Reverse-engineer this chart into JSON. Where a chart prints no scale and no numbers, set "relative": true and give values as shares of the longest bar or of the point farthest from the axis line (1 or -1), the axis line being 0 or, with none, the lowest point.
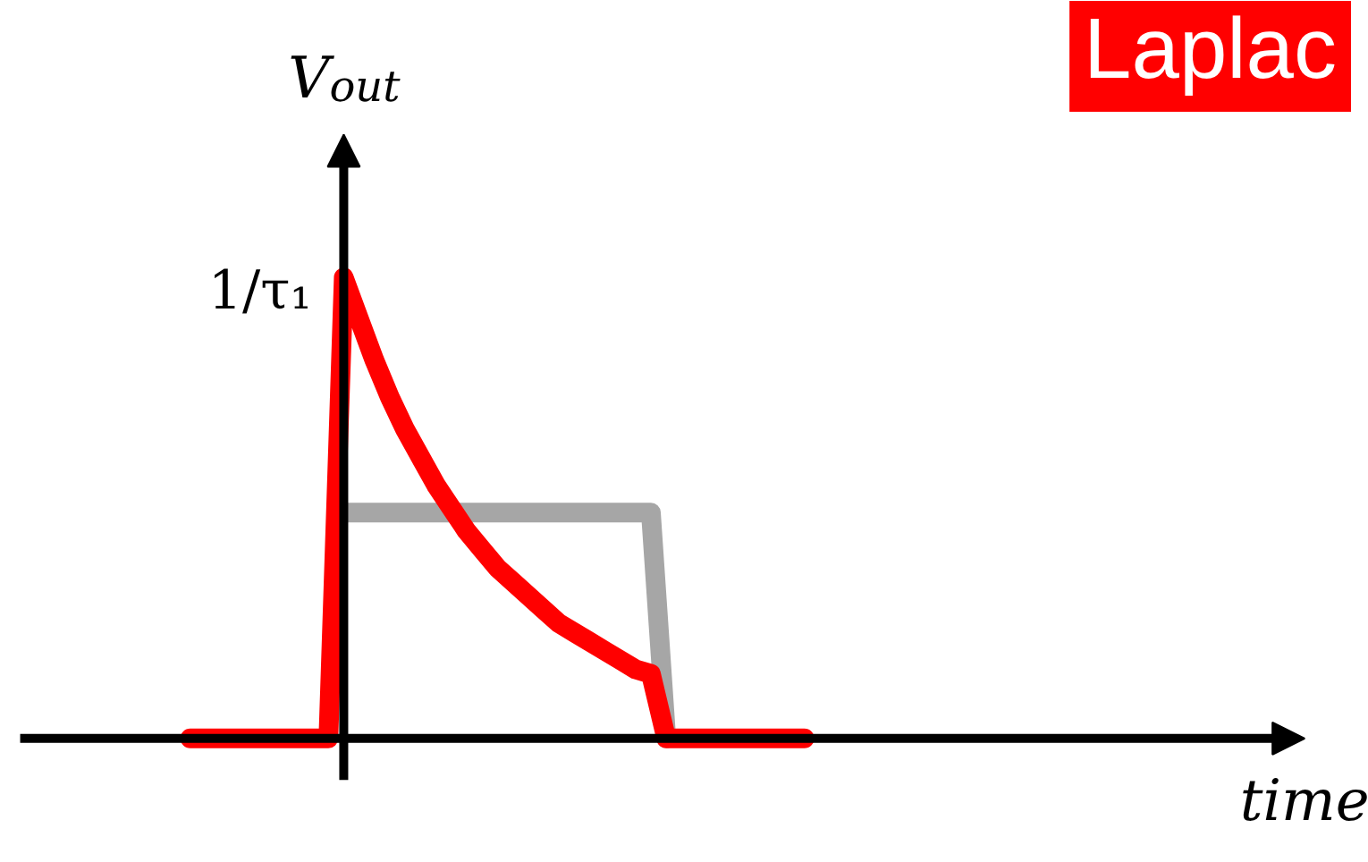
{
  "chart_data": {
    "type": "line",
    "title": "Laplac",
    "ylabel": "V$_{out}$",
    "relative": true,
    "tick_labels": false,
    "grid": false,
    "line_style": "solid",
    "categories": [
      null,
      null,
      null,
      null,
      null,
      null,
      null,
      null,
      null,
      null,
      null,
      null,
      null,
      null,
      null,
      null,
      null,
      null,
      null,
      null,
      null,
      null,
      null,
      null,
      null,
      null,
      null,
      null,
      null,
      null,
      null,
      null,
      null,
      null,
      null,
      null,
      null,
      null,
      null,
      null,
      null
    ],
    "annotations": [
      "1/τ₁",
      "time"
    ],
    "series": [
      {
        "color": "#a6a6a6",
        "values": [
          null,
          null,
          null,
          null,
          null,
          null,
          null,
          null,
          null,
          null,
          0.49,
          0.49,
          0.49,
          0.49,
          0.49,
          0.49,
          0.49,
          0.49,
          0.49,
          0.49,
          0.49,
          0.49,
          0.49,
          0.49,
          0.49,
          0.49,
          0.49,
          0.49,
          0.49,
          0.49,
          0.49,
          0,
          null,
          null,
          null,
          null,
          null,
          null,
          null,
          null,
          null
        ]
      },
      {
        "color": "#ff0000",
        "values": [
          0,
          0,
          0,
          0,
          0,
          0,
          0,
          0,
          0,
          0,
          1,
          0.91,
          0.82,
          0.74,
          0.67,
          0.61,
          0.55,
          0.5,
          0.45,
          0.41,
          0.37,
          0.34,
          0.31,
          0.28,
          0.25,
          0.23,
          0.21,
          0.19,
          0.17,
          0.15,
          0.14,
          0,
          0,
          0,
          0,
          0,
          0,
          0,
          0,
          0,
          0
        ]
      }
    ]
  }
}
